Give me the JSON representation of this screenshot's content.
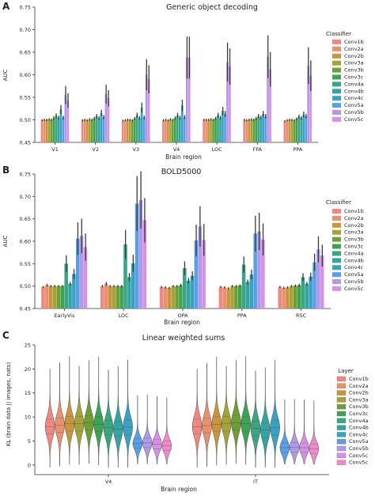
{
  "colors": [
    "#f08782",
    "#e9906e",
    "#c8953e",
    "#a5a23a",
    "#6f9e35",
    "#3da252",
    "#3ba582",
    "#36a3a3",
    "#3aa1c3",
    "#5a9fe3",
    "#b099e8",
    "#d88fe6",
    "#ee8ac9"
  ],
  "chart_data": [
    {
      "panel": "A",
      "type": "bar",
      "title": "Generic object decoding",
      "xlabel": "Brain region",
      "ylabel": "AUC",
      "ylim": [
        0.45,
        0.75
      ],
      "yticks": [
        "0.45",
        "0.50",
        "0.55",
        "0.60",
        "0.65",
        "0.70",
        "0.75"
      ],
      "categories": [
        "V1",
        "V2",
        "V3",
        "V4",
        "LOC",
        "FFA",
        "PPA"
      ],
      "legend_title": "Classifier",
      "legend_position": "right",
      "series": [
        {
          "name": "Conv1b",
          "values": [
            0.499,
            0.499,
            0.498,
            0.499,
            0.5,
            0.5,
            0.497
          ]
        },
        {
          "name": "Conv2a",
          "values": [
            0.5,
            0.5,
            0.499,
            0.5,
            0.5,
            0.499,
            0.499
          ]
        },
        {
          "name": "Conv2b",
          "values": [
            0.5,
            0.499,
            0.5,
            0.499,
            0.5,
            0.5,
            0.5
          ]
        },
        {
          "name": "Conv3a",
          "values": [
            0.501,
            0.501,
            0.5,
            0.501,
            0.501,
            0.501,
            0.5
          ]
        },
        {
          "name": "Conv3b",
          "values": [
            0.5,
            0.5,
            0.499,
            0.5,
            0.5,
            0.5,
            0.499
          ]
        },
        {
          "name": "Conv3c",
          "values": [
            0.504,
            0.503,
            0.503,
            0.504,
            0.503,
            0.503,
            0.502
          ]
        },
        {
          "name": "Conv4a",
          "values": [
            0.509,
            0.508,
            0.51,
            0.51,
            0.51,
            0.508,
            0.507
          ]
        },
        {
          "name": "Conv4b",
          "values": [
            0.505,
            0.504,
            0.504,
            0.505,
            0.505,
            0.505,
            0.504
          ]
        },
        {
          "name": "Conv4c",
          "values": [
            0.523,
            0.515,
            0.527,
            0.532,
            0.52,
            0.513,
            0.512
          ]
        },
        {
          "name": "Conv5a",
          "values": [
            0.505,
            0.506,
            0.505,
            0.506,
            0.513,
            0.508,
            0.508
          ]
        },
        {
          "name": "Conv5b",
          "values": [
            0.555,
            0.557,
            0.6,
            0.638,
            0.628,
            0.64,
            0.62
          ]
        },
        {
          "name": "Conv5c",
          "values": [
            0.543,
            0.548,
            0.59,
            0.638,
            0.618,
            0.612,
            0.598
          ]
        }
      ]
    },
    {
      "panel": "B",
      "type": "bar",
      "title": "BOLD5000",
      "xlabel": "Brain region",
      "ylabel": "AUC",
      "ylim": [
        0.45,
        0.75
      ],
      "yticks": [
        "0.45",
        "0.50",
        "0.55",
        "0.60",
        "0.65",
        "0.70",
        "0.75"
      ],
      "categories": [
        "EarlyVis",
        "LOC",
        "OPA",
        "PPA",
        "RSC"
      ],
      "legend_title": "Classifier",
      "legend_position": "right",
      "series": [
        {
          "name": "Conv1b",
          "values": [
            0.498,
            0.5,
            0.498,
            0.498,
            0.498
          ]
        },
        {
          "name": "Conv2a",
          "values": [
            0.502,
            0.505,
            0.497,
            0.497,
            0.496
          ]
        },
        {
          "name": "Conv2b",
          "values": [
            0.5,
            0.5,
            0.496,
            0.495,
            0.497
          ]
        },
        {
          "name": "Conv3a",
          "values": [
            0.5,
            0.5,
            0.5,
            0.5,
            0.5
          ]
        },
        {
          "name": "Conv3b",
          "values": [
            0.5,
            0.5,
            0.5,
            0.5,
            0.501
          ]
        },
        {
          "name": "Conv3c",
          "values": [
            0.5,
            0.5,
            0.502,
            0.501,
            0.502
          ]
        },
        {
          "name": "Conv4a",
          "values": [
            0.55,
            0.593,
            0.54,
            0.548,
            0.52
          ]
        },
        {
          "name": "Conv4b",
          "values": [
            0.505,
            0.52,
            0.512,
            0.509,
            0.505
          ]
        },
        {
          "name": "Conv4c",
          "values": [
            0.527,
            0.551,
            0.523,
            0.526,
            0.521
          ]
        },
        {
          "name": "Conv5a",
          "values": [
            0.606,
            0.684,
            0.602,
            0.617,
            0.553
          ]
        },
        {
          "name": "Conv5b",
          "values": [
            0.612,
            0.692,
            0.633,
            0.622,
            0.582
          ]
        },
        {
          "name": "Conv5c",
          "values": [
            0.587,
            0.647,
            0.603,
            0.604,
            0.568
          ]
        }
      ]
    },
    {
      "panel": "C",
      "type": "violin",
      "title": "Linear weighted sums",
      "xlabel": "Brain region",
      "ylabel": "KL (brain data || images, nats)",
      "ylim": [
        -2,
        25
      ],
      "yticks": [
        "0",
        "5",
        "10",
        "15",
        "20",
        "25"
      ],
      "categories": [
        "V4",
        "IT"
      ],
      "legend_title": "Layer",
      "legend_position": "right",
      "series": [
        {
          "name": "Conv1b",
          "values": [
            8.0,
            8.0
          ]
        },
        {
          "name": "Conv2a",
          "values": [
            8.3,
            8.2
          ]
        },
        {
          "name": "Conv2b",
          "values": [
            8.6,
            8.5
          ]
        },
        {
          "name": "Conv3a",
          "values": [
            8.6,
            8.6
          ]
        },
        {
          "name": "Conv3b",
          "values": [
            8.8,
            8.8
          ]
        },
        {
          "name": "Conv3c",
          "values": [
            8.5,
            8.6
          ]
        },
        {
          "name": "Conv4a",
          "values": [
            7.8,
            7.6
          ]
        },
        {
          "name": "Conv4b",
          "values": [
            7.5,
            7.3
          ]
        },
        {
          "name": "Conv4c",
          "values": [
            7.9,
            7.8
          ]
        },
        {
          "name": "Conv5a",
          "values": [
            4.5,
            3.6
          ]
        },
        {
          "name": "Conv5b",
          "values": [
            4.6,
            3.7
          ]
        },
        {
          "name": "Conv5c",
          "values": [
            4.3,
            3.6
          ]
        },
        {
          "name": "Conv5c",
          "values": [
            4.0,
            3.4
          ]
        }
      ]
    }
  ]
}
